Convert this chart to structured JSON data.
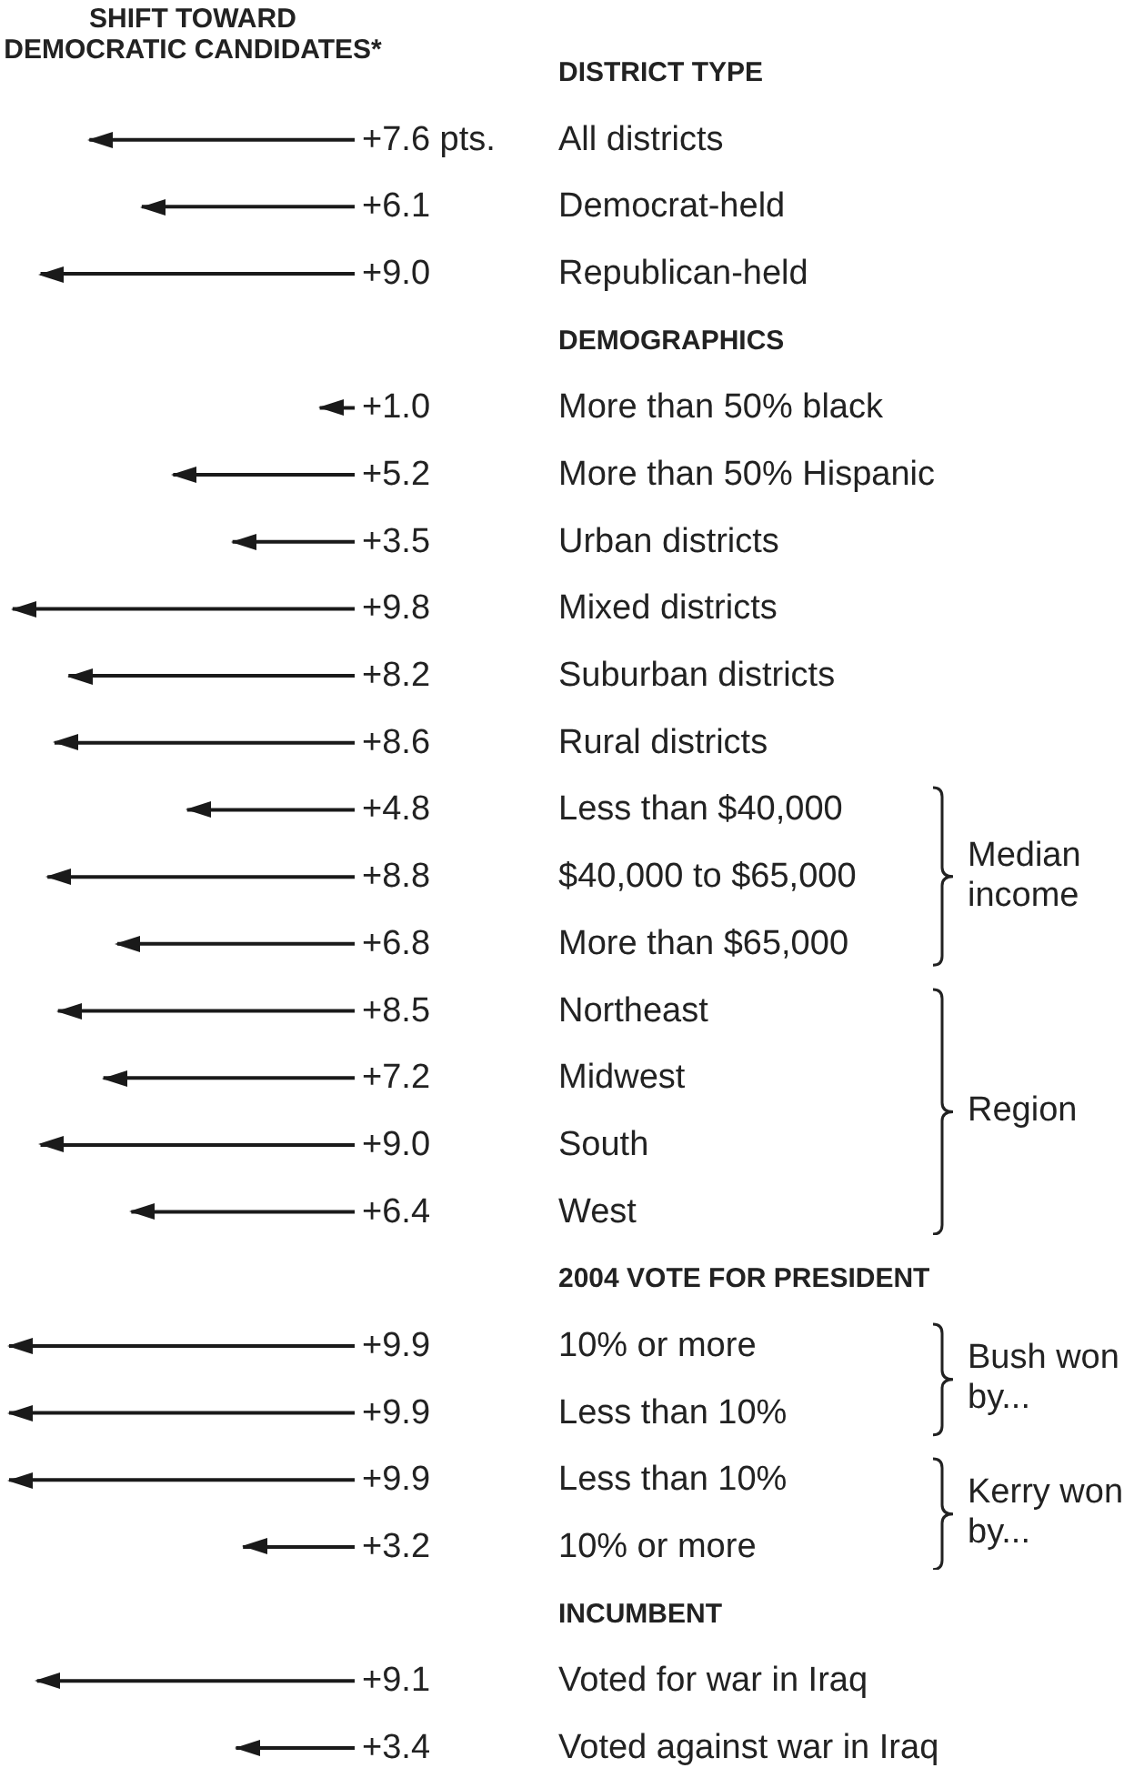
{
  "chart_data": {
    "type": "bar",
    "orientation": "horizontal",
    "title": "SHIFT TOWARD DEMOCRATIC CANDIDATES*",
    "categories": [
      "DISTRICT TYPE",
      "All districts",
      "Democrat-held",
      "Republican-held",
      "DEMOGRAPHICS",
      "More than 50% black",
      "More than 50% Hispanic",
      "Urban districts",
      "Mixed districts",
      "Suburban districts",
      "Rural districts",
      "Less than $40,000",
      "$40,000 to $65,000",
      "More than $65,000",
      "Northeast",
      "Midwest",
      "South",
      "West",
      "2004 VOTE FOR PRESIDENT",
      "10% or more",
      "Less than 10%",
      "Less than 10%",
      "10% or more",
      "INCUMBENT",
      "Voted for war in Iraq",
      "Voted against war in Iraq"
    ],
    "values": [
      null,
      7.6,
      6.1,
      9.0,
      null,
      1.0,
      5.2,
      3.5,
      9.8,
      8.2,
      8.6,
      4.8,
      8.8,
      6.8,
      8.5,
      7.2,
      9.0,
      6.4,
      null,
      9.9,
      9.9,
      9.9,
      3.2,
      null,
      9.1,
      3.4
    ],
    "value_labels": [
      null,
      "+7.6 pts.",
      "+6.1",
      "+9.0",
      null,
      "+1.0",
      "+5.2",
      "+3.5",
      "+9.8",
      "+8.2",
      "+8.6",
      "+4.8",
      "+8.8",
      "+6.8",
      "+8.5",
      "+7.2",
      "+9.0",
      "+6.4",
      null,
      "+9.9",
      "+9.9",
      "+9.9",
      "+3.2",
      null,
      "+9.1",
      "+3.4"
    ],
    "color": "#1a1a1a",
    "annotations": [
      "Median income",
      "Region",
      "Bush won by...",
      "Kerry won by..."
    ]
  }
}
